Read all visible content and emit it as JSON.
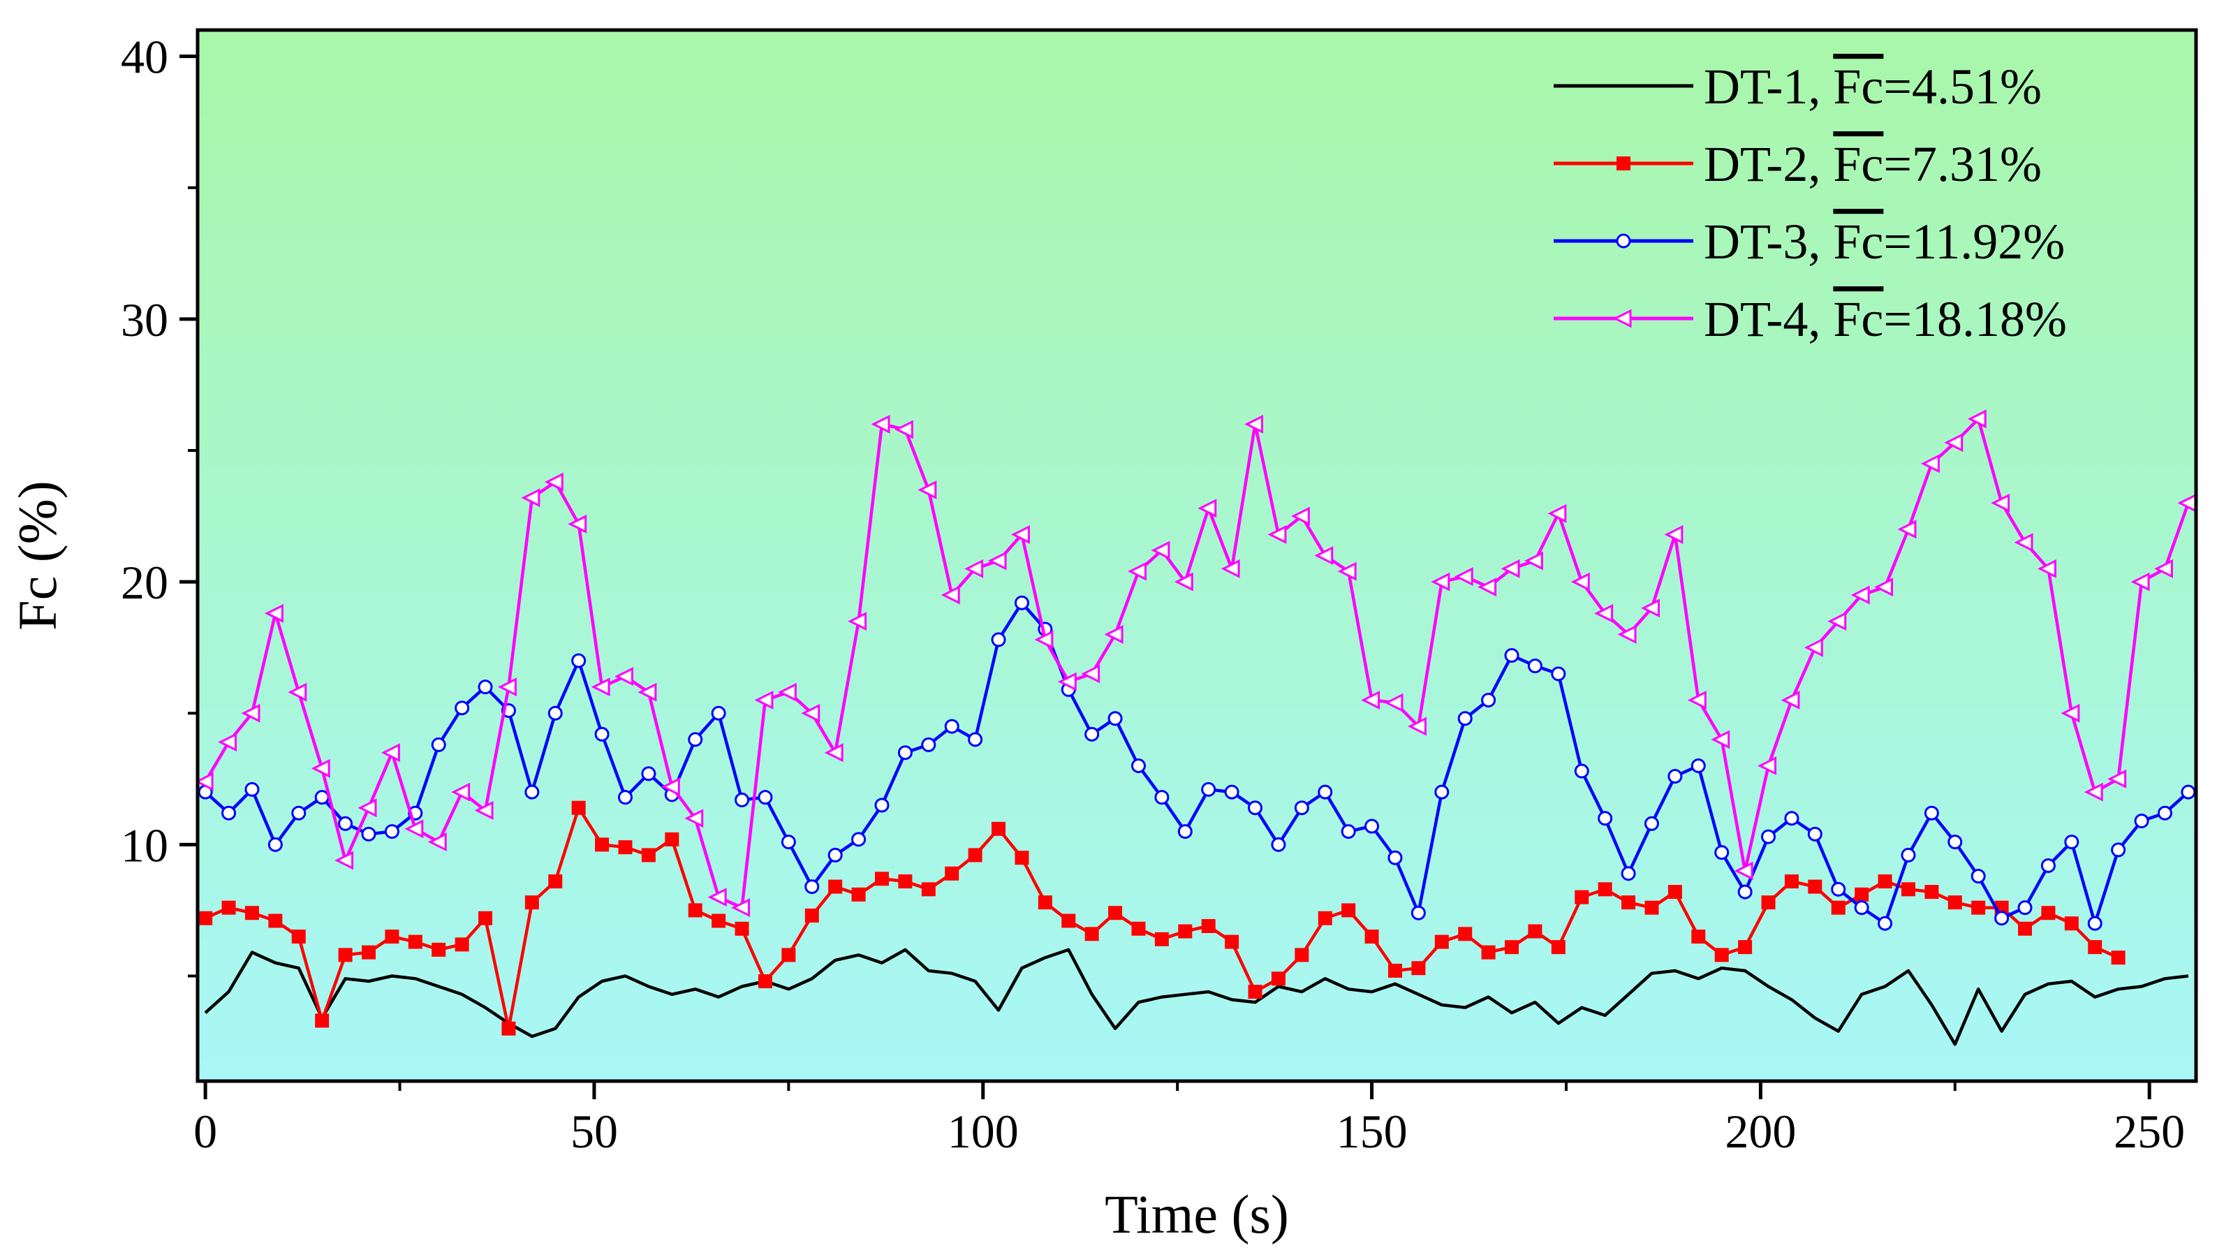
{
  "chart_data": {
    "type": "line",
    "title": "",
    "xlabel": "Time (s)",
    "ylabel": "Fc (%)",
    "xlim": [
      -1,
      256
    ],
    "ylim": [
      1,
      41
    ],
    "xticks": [
      0,
      50,
      100,
      150,
      200,
      250
    ],
    "yticks": [
      10,
      20,
      30,
      40
    ],
    "grid": false,
    "legend_position": "top-right",
    "background": {
      "top_color": "#a9f7a9",
      "bottom_color": "#a9f7f7"
    },
    "series": [
      {
        "name": "DT-1, Fc=4.51%",
        "legend_prefix": "DT-1, ",
        "legend_symbol": "Fc",
        "legend_suffix": "=4.51%",
        "color": "#000000",
        "marker": "none",
        "x": [
          0,
          3,
          6,
          9,
          12,
          15,
          18,
          21,
          24,
          27,
          30,
          33,
          36,
          39,
          42,
          45,
          48,
          51,
          54,
          57,
          60,
          63,
          66,
          69,
          72,
          75,
          78,
          81,
          84,
          87,
          90,
          93,
          96,
          99,
          102,
          105,
          108,
          111,
          114,
          117,
          120,
          123,
          126,
          129,
          132,
          135,
          138,
          141,
          144,
          147,
          150,
          153,
          156,
          159,
          162,
          165,
          168,
          171,
          174,
          177,
          180,
          183,
          186,
          189,
          192,
          195,
          198,
          201,
          204,
          207,
          210,
          213,
          216,
          219,
          222,
          225,
          228,
          231,
          234,
          237,
          240,
          243,
          246,
          249,
          252,
          255
        ],
        "values": [
          3.6,
          4.4,
          5.9,
          5.5,
          5.3,
          3.4,
          4.9,
          4.8,
          5.0,
          4.9,
          4.6,
          4.3,
          3.8,
          3.2,
          2.7,
          3.0,
          4.2,
          4.8,
          5.0,
          4.6,
          4.3,
          4.5,
          4.2,
          4.6,
          4.8,
          4.5,
          4.9,
          5.6,
          5.8,
          5.5,
          6.0,
          5.2,
          5.1,
          4.8,
          3.7,
          5.3,
          5.7,
          6.0,
          4.3,
          3.0,
          4.0,
          4.2,
          4.3,
          4.4,
          4.1,
          4.0,
          4.6,
          4.4,
          4.9,
          4.5,
          4.4,
          4.7,
          4.3,
          3.9,
          3.8,
          4.2,
          3.6,
          4.0,
          3.2,
          3.8,
          3.5,
          4.3,
          5.1,
          5.2,
          4.9,
          5.3,
          5.2,
          4.6,
          4.1,
          3.4,
          2.9,
          4.3,
          4.6,
          5.2,
          3.9,
          2.4,
          4.5,
          2.9,
          4.3,
          4.7,
          4.8,
          4.2,
          4.5,
          4.6,
          4.9,
          5.0
        ]
      },
      {
        "name": "DT-2, Fc=7.31%",
        "legend_prefix": "DT-2, ",
        "legend_symbol": "Fc",
        "legend_suffix": "=7.31%",
        "color": "#ff0000",
        "marker": "square",
        "x": [
          0,
          3,
          6,
          9,
          12,
          15,
          18,
          21,
          24,
          27,
          30,
          33,
          36,
          39,
          42,
          45,
          48,
          51,
          54,
          57,
          60,
          63,
          66,
          69,
          72,
          75,
          78,
          81,
          84,
          87,
          90,
          93,
          96,
          99,
          102,
          105,
          108,
          111,
          114,
          117,
          120,
          123,
          126,
          129,
          132,
          135,
          138,
          141,
          144,
          147,
          150,
          153,
          156,
          159,
          162,
          165,
          168,
          171,
          174,
          177,
          180,
          183,
          186,
          189,
          192,
          195,
          198,
          201,
          204,
          207,
          210,
          213,
          216,
          219,
          222,
          225,
          228,
          231,
          234,
          237,
          240,
          243,
          246
        ],
        "values": [
          7.2,
          7.6,
          7.4,
          7.1,
          6.5,
          3.3,
          5.8,
          5.9,
          6.5,
          6.3,
          6.0,
          6.2,
          7.2,
          3.0,
          7.8,
          8.6,
          11.4,
          10.0,
          9.9,
          9.6,
          10.2,
          7.5,
          7.1,
          6.8,
          4.8,
          5.8,
          7.3,
          8.4,
          8.1,
          8.7,
          8.6,
          8.3,
          8.9,
          9.6,
          10.6,
          9.5,
          7.8,
          7.1,
          6.6,
          7.4,
          6.8,
          6.4,
          6.7,
          6.9,
          6.3,
          4.4,
          4.9,
          5.8,
          7.2,
          7.5,
          6.5,
          5.2,
          5.3,
          6.3,
          6.6,
          5.9,
          6.1,
          6.7,
          6.1,
          8.0,
          8.3,
          7.8,
          7.6,
          8.2,
          6.5,
          5.8,
          6.1,
          7.8,
          8.6,
          8.4,
          7.6,
          8.1,
          8.6,
          8.3,
          8.2,
          7.8,
          7.6,
          7.6,
          6.8,
          7.4,
          7.0,
          6.1,
          5.7
        ]
      },
      {
        "name": "DT-3, Fc=11.92%",
        "legend_prefix": "DT-3, ",
        "legend_symbol": "Fc",
        "legend_suffix": "=11.92%",
        "color": "#0000ff",
        "marker": "circle",
        "x": [
          0,
          3,
          6,
          9,
          12,
          15,
          18,
          21,
          24,
          27,
          30,
          33,
          36,
          39,
          42,
          45,
          48,
          51,
          54,
          57,
          60,
          63,
          66,
          69,
          72,
          75,
          78,
          81,
          84,
          87,
          90,
          93,
          96,
          99,
          102,
          105,
          108,
          111,
          114,
          117,
          120,
          123,
          126,
          129,
          132,
          135,
          138,
          141,
          144,
          147,
          150,
          153,
          156,
          159,
          162,
          165,
          168,
          171,
          174,
          177,
          180,
          183,
          186,
          189,
          192,
          195,
          198,
          201,
          204,
          207,
          210,
          213,
          216,
          219,
          222,
          225,
          228,
          231,
          234,
          237,
          240,
          243,
          246,
          249,
          252,
          255
        ],
        "values": [
          12.0,
          11.2,
          12.1,
          10.0,
          11.2,
          11.8,
          10.8,
          10.4,
          10.5,
          11.2,
          13.8,
          15.2,
          16.0,
          15.1,
          12.0,
          15.0,
          17.0,
          14.2,
          11.8,
          12.7,
          11.9,
          14.0,
          15.0,
          11.7,
          11.8,
          10.1,
          8.4,
          9.6,
          10.2,
          11.5,
          13.5,
          13.8,
          14.5,
          14.0,
          17.8,
          19.2,
          18.2,
          15.9,
          14.2,
          14.8,
          13.0,
          11.8,
          10.5,
          12.1,
          12.0,
          11.4,
          10.0,
          11.4,
          12.0,
          10.5,
          10.7,
          9.5,
          7.4,
          12.0,
          14.8,
          15.5,
          17.2,
          16.8,
          16.5,
          12.8,
          11.0,
          8.9,
          10.8,
          12.6,
          13.0,
          9.7,
          8.2,
          10.3,
          11.0,
          10.4,
          8.3,
          7.6,
          7.0,
          9.6,
          11.2,
          10.1,
          8.8,
          7.2,
          7.6,
          9.2,
          10.1,
          7.0,
          9.8,
          10.9,
          11.2,
          12.0
        ]
      },
      {
        "name": "DT-4, Fc=18.18%",
        "legend_prefix": "DT-4, ",
        "legend_symbol": "Fc",
        "legend_suffix": "=18.18%",
        "color": "#ff00ff",
        "marker": "triangle-left",
        "x": [
          0,
          3,
          6,
          9,
          12,
          15,
          18,
          21,
          24,
          27,
          30,
          33,
          36,
          39,
          42,
          45,
          48,
          51,
          54,
          57,
          60,
          63,
          66,
          69,
          72,
          75,
          78,
          81,
          84,
          87,
          90,
          93,
          96,
          99,
          102,
          105,
          108,
          111,
          114,
          117,
          120,
          123,
          126,
          129,
          132,
          135,
          138,
          141,
          144,
          147,
          150,
          153,
          156,
          159,
          162,
          165,
          168,
          171,
          174,
          177,
          180,
          183,
          186,
          189,
          192,
          195,
          198,
          201,
          204,
          207,
          210,
          213,
          216,
          219,
          222,
          225,
          228,
          231,
          234,
          237,
          240,
          243,
          246,
          249,
          252,
          255
        ],
        "values": [
          12.4,
          13.9,
          15.0,
          18.8,
          15.8,
          12.9,
          9.4,
          11.4,
          13.5,
          10.6,
          10.1,
          12.0,
          11.3,
          16.0,
          23.2,
          23.8,
          22.2,
          16.0,
          16.4,
          15.8,
          12.2,
          11.0,
          8.0,
          7.6,
          15.5,
          15.8,
          15.0,
          13.5,
          18.5,
          26.0,
          25.8,
          23.5,
          19.5,
          20.5,
          20.8,
          21.8,
          17.8,
          16.2,
          16.5,
          18.0,
          20.4,
          21.2,
          20.0,
          22.8,
          20.5,
          26.0,
          21.8,
          22.5,
          21.0,
          20.4,
          15.5,
          15.4,
          14.5,
          20.0,
          20.2,
          19.8,
          20.5,
          20.8,
          22.6,
          20.0,
          18.8,
          18.0,
          19.0,
          21.8,
          15.5,
          14.0,
          9.0,
          13.0,
          15.5,
          17.5,
          18.5,
          19.5,
          19.8,
          22.0,
          24.5,
          25.3,
          26.2,
          23.0,
          21.5,
          20.5,
          15.0,
          12.0,
          12.5,
          20.0,
          20.5,
          23.0
        ]
      }
    ]
  }
}
